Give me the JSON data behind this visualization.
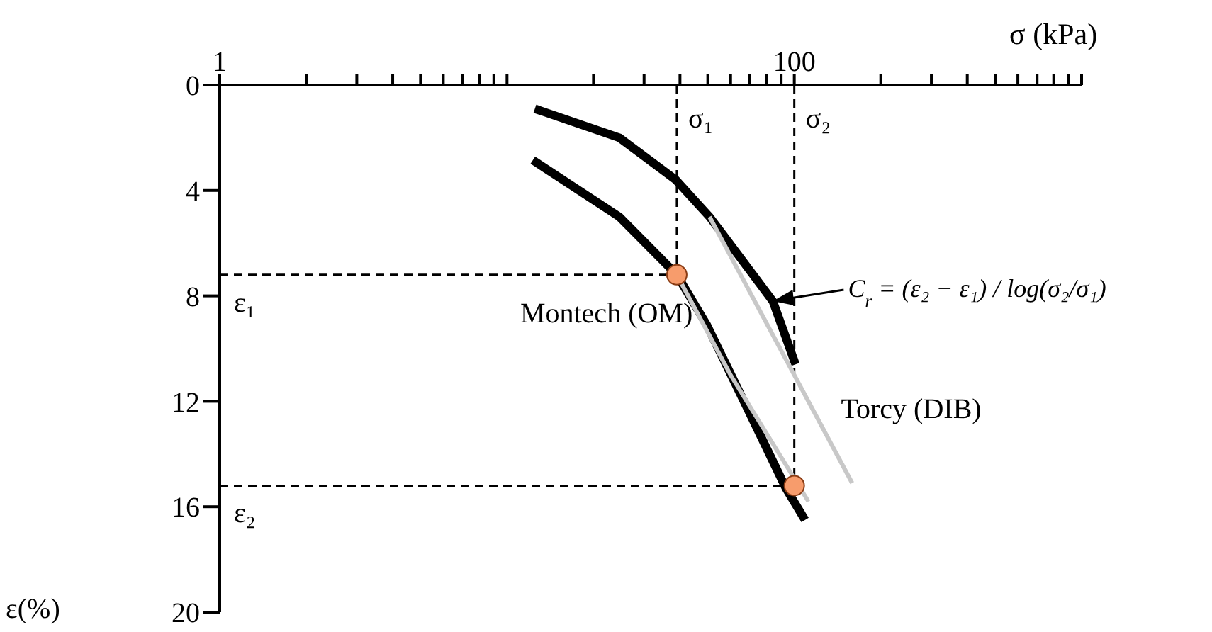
{
  "chart_data": {
    "type": "line",
    "xlabel": "σ (kPa)",
    "ylabel": "ε(%)",
    "log": "x",
    "xlim": [
      1,
      1000
    ],
    "ylim": [
      20,
      0
    ],
    "xticks": [
      1,
      {
        "value": 2,
        "label": null
      },
      {
        "value": 3,
        "label": null
      },
      {
        "value": 4,
        "label": null
      },
      {
        "value": 5,
        "label": null
      },
      {
        "value": 6,
        "label": null
      },
      {
        "value": 7,
        "label": null
      },
      {
        "value": 8,
        "label": null
      },
      {
        "value": 9,
        "label": null
      },
      {
        "value": 10,
        "label": null
      },
      {
        "value": 20,
        "label": null
      },
      {
        "value": 30,
        "label": null
      },
      {
        "value": 40,
        "label": null
      },
      {
        "value": 50,
        "label": null
      },
      {
        "value": 60,
        "label": null
      },
      {
        "value": 70,
        "label": null
      },
      {
        "value": 80,
        "label": null
      },
      {
        "value": 90,
        "label": null
      },
      100,
      {
        "value": 200,
        "label": null
      },
      {
        "value": 300,
        "label": null
      },
      {
        "value": 400,
        "label": null
      },
      {
        "value": 500,
        "label": null
      },
      {
        "value": 600,
        "label": null
      },
      {
        "value": 700,
        "label": null
      },
      {
        "value": 800,
        "label": null
      },
      {
        "value": 900,
        "label": null
      },
      {
        "value": 1000,
        "label": null
      }
    ],
    "yticks": [
      0,
      4,
      8,
      12,
      16,
      20
    ],
    "series": [
      {
        "name": "Montech (OM)",
        "color": "#000000",
        "x": [
          12.3,
          24.6,
          39,
          49.6,
          69.6,
          93.5,
          109
        ],
        "values": [
          2.85,
          5.0,
          7.2,
          9.1,
          12.4,
          15.3,
          16.5
        ]
      },
      {
        "color": "#c8c8c8",
        "x": [
          39,
          60,
          112
        ],
        "values": [
          7.2,
          11,
          15.8
        ]
      },
      {
        "name": "Torcy (DIB)",
        "color": "#000000",
        "x": [
          12.5,
          24.6,
          38.7,
          50.7,
          84.2,
          101
        ],
        "values": [
          0.9,
          2.0,
          3.6,
          5.0,
          8.2,
          10.6
        ]
      },
      {
        "color": "#c8c8c8",
        "x": [
          50.7,
          159
        ],
        "values": [
          5.0,
          15.1
        ]
      },
      {
        "type": "scatter",
        "marker": "circle",
        "color": "#f79c6c",
        "x": [
          39,
          100
        ],
        "values": [
          7.2,
          15.2
        ]
      }
    ],
    "ref_lines": [
      {
        "axis": "x",
        "value": 39,
        "label": "σ₁",
        "line_style": "dashed",
        "color": "#000000"
      },
      {
        "axis": "x",
        "value": 100,
        "label": "σ₂",
        "line_style": "dashed",
        "color": "#000000"
      },
      {
        "axis": "y",
        "value": 7.2,
        "label": "ε₁",
        "line_style": "dashed",
        "color": "#000000"
      },
      {
        "axis": "y",
        "value": 15.2,
        "label": "ε₂",
        "line_style": "dashed",
        "color": "#000000"
      }
    ],
    "annotations": [
      {
        "text": "C$_{r}$ = (ε₂ − ε₁) / log(σ₂/σ₁)",
        "x": 84.2,
        "y": 8.2
      }
    ]
  }
}
